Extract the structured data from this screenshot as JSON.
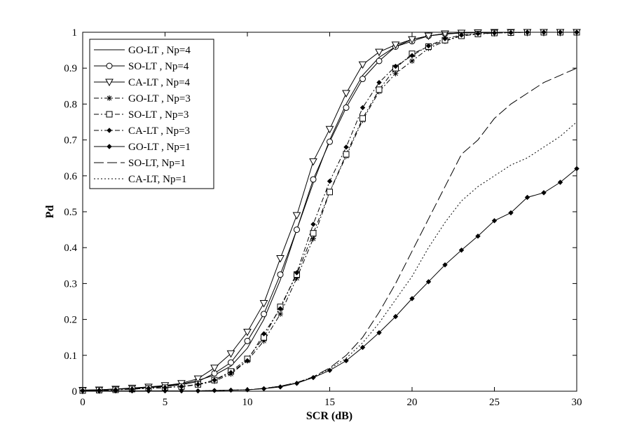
{
  "chart_data": {
    "type": "line",
    "title": "",
    "xlabel": "SCR (dB)",
    "ylabel": "Pd",
    "xlim": [
      0,
      30
    ],
    "ylim": [
      0,
      1
    ],
    "xticks": [
      0,
      5,
      10,
      15,
      20,
      25,
      30
    ],
    "yticks": [
      0,
      0.1,
      0.2,
      0.3,
      0.4,
      0.5,
      0.6,
      0.7,
      0.8,
      0.9,
      1
    ],
    "xtick_labels": [
      "0",
      "5",
      "10",
      "15",
      "20",
      "25",
      "30"
    ],
    "ytick_labels": [
      "0",
      "0.1",
      "0.2",
      "0.3",
      "0.4",
      "0.5",
      "0.6",
      "0.7",
      "0.8",
      "0.9",
      "1"
    ],
    "grid": false,
    "legend_position": "top-left",
    "x": [
      0,
      1,
      2,
      3,
      4,
      5,
      6,
      7,
      8,
      9,
      10,
      11,
      12,
      13,
      14,
      15,
      16,
      17,
      18,
      19,
      20,
      21,
      22,
      23,
      24,
      25,
      26,
      27,
      28,
      29,
      30
    ],
    "series": [
      {
        "name": "GO-LT , Np=4",
        "dash": "solid",
        "marker": "none",
        "values": [
          0.003,
          0.004,
          0.006,
          0.008,
          0.011,
          0.015,
          0.02,
          0.03,
          0.045,
          0.07,
          0.12,
          0.2,
          0.31,
          0.45,
          0.58,
          0.7,
          0.8,
          0.88,
          0.93,
          0.96,
          0.98,
          0.99,
          0.995,
          0.998,
          0.999,
          1,
          1,
          1,
          1,
          1,
          1
        ]
      },
      {
        "name": "SO-LT , Np=4",
        "dash": "solid",
        "marker": "circle",
        "values": [
          0.002,
          0.003,
          0.005,
          0.007,
          0.01,
          0.013,
          0.018,
          0.027,
          0.05,
          0.08,
          0.14,
          0.215,
          0.325,
          0.45,
          0.59,
          0.695,
          0.79,
          0.87,
          0.92,
          0.96,
          0.975,
          0.99,
          0.996,
          0.998,
          0.999,
          1,
          1,
          1,
          1,
          1,
          1
        ]
      },
      {
        "name": "CA-LT , Np=4",
        "dash": "solid",
        "marker": "triangle-down",
        "values": [
          0.003,
          0.004,
          0.006,
          0.009,
          0.012,
          0.016,
          0.022,
          0.035,
          0.065,
          0.105,
          0.165,
          0.245,
          0.37,
          0.49,
          0.64,
          0.73,
          0.83,
          0.91,
          0.945,
          0.965,
          0.98,
          0.99,
          0.996,
          0.998,
          0.999,
          1,
          1,
          1,
          1,
          1,
          1
        ]
      },
      {
        "name": "GO-LT , Np=3",
        "dash": "dashdot",
        "marker": "asterisk",
        "values": [
          0.002,
          0.003,
          0.004,
          0.006,
          0.008,
          0.01,
          0.013,
          0.018,
          0.028,
          0.048,
          0.085,
          0.14,
          0.215,
          0.315,
          0.425,
          0.555,
          0.655,
          0.755,
          0.835,
          0.885,
          0.92,
          0.955,
          0.975,
          0.99,
          0.995,
          0.998,
          0.999,
          1,
          1,
          1,
          1
        ]
      },
      {
        "name": "SO-LT , Np=3",
        "dash": "dashdot",
        "marker": "square",
        "values": [
          0.002,
          0.003,
          0.004,
          0.006,
          0.008,
          0.01,
          0.013,
          0.019,
          0.031,
          0.055,
          0.09,
          0.15,
          0.235,
          0.325,
          0.44,
          0.555,
          0.66,
          0.76,
          0.84,
          0.9,
          0.94,
          0.96,
          0.978,
          0.99,
          0.995,
          0.998,
          0.999,
          1,
          1,
          1,
          1
        ]
      },
      {
        "name": "CA-LT , Np=3",
        "dash": "dashdot",
        "marker": "diamond",
        "values": [
          0.002,
          0.003,
          0.004,
          0.006,
          0.008,
          0.01,
          0.013,
          0.019,
          0.031,
          0.052,
          0.085,
          0.16,
          0.23,
          0.33,
          0.465,
          0.585,
          0.68,
          0.79,
          0.86,
          0.905,
          0.935,
          0.962,
          0.982,
          0.992,
          0.996,
          0.998,
          0.999,
          1,
          1,
          1,
          1
        ]
      },
      {
        "name": "GO-LT , Np=1",
        "dash": "solid",
        "marker": "diamond",
        "values": [
          0.001,
          0.001,
          0.001,
          0.001,
          0.001,
          0.001,
          0.001,
          0.001,
          0.002,
          0.003,
          0.004,
          0.007,
          0.012,
          0.022,
          0.038,
          0.058,
          0.085,
          0.122,
          0.163,
          0.208,
          0.258,
          0.305,
          0.352,
          0.393,
          0.432,
          0.475,
          0.497,
          0.54,
          0.553,
          0.582,
          0.62
        ]
      },
      {
        "name": "SO-LT, Np=1",
        "dash": "longdash",
        "marker": "none",
        "values": [
          0.001,
          0.001,
          0.001,
          0.001,
          0.001,
          0.001,
          0.001,
          0.001,
          0.002,
          0.003,
          0.004,
          0.008,
          0.014,
          0.024,
          0.04,
          0.065,
          0.1,
          0.15,
          0.22,
          0.3,
          0.39,
          0.48,
          0.57,
          0.66,
          0.7,
          0.76,
          0.8,
          0.83,
          0.86,
          0.88,
          0.9
        ]
      },
      {
        "name": "CA-LT, Np=1",
        "dash": "dotted",
        "marker": "none",
        "values": [
          0.001,
          0.001,
          0.001,
          0.001,
          0.001,
          0.001,
          0.001,
          0.001,
          0.002,
          0.003,
          0.004,
          0.008,
          0.014,
          0.024,
          0.04,
          0.062,
          0.092,
          0.135,
          0.19,
          0.255,
          0.32,
          0.4,
          0.47,
          0.53,
          0.57,
          0.6,
          0.63,
          0.65,
          0.68,
          0.71,
          0.75
        ]
      }
    ]
  }
}
